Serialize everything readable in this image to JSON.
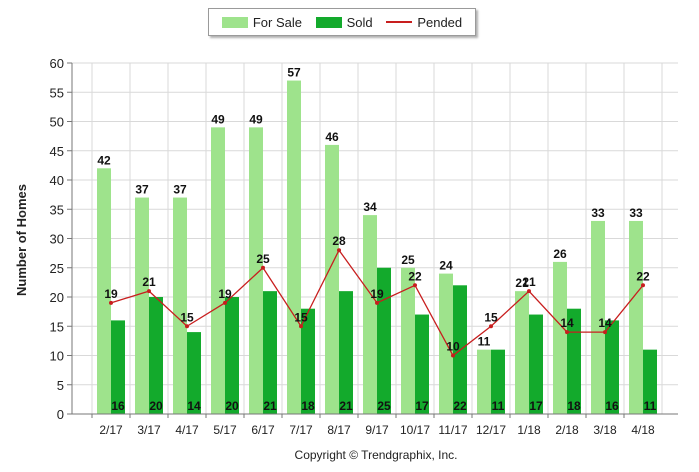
{
  "chart_data": {
    "type": "bar",
    "categories": [
      "2/17",
      "3/17",
      "4/17",
      "5/17",
      "6/17",
      "7/17",
      "8/17",
      "9/17",
      "10/17",
      "11/17",
      "12/17",
      "1/18",
      "2/18",
      "3/18",
      "4/18"
    ],
    "series": [
      {
        "name": "For Sale",
        "type": "bar",
        "color": "#9ee38c",
        "values": [
          42,
          37,
          37,
          49,
          49,
          57,
          46,
          34,
          25,
          24,
          11,
          21,
          26,
          33,
          33
        ]
      },
      {
        "name": "Sold",
        "type": "bar",
        "color": "#13aa2c",
        "values": [
          16,
          20,
          14,
          20,
          21,
          18,
          21,
          25,
          17,
          22,
          11,
          17,
          18,
          16,
          11
        ]
      },
      {
        "name": "Pended",
        "type": "line",
        "color": "#c81e1e",
        "values": [
          19,
          21,
          15,
          19,
          25,
          15,
          28,
          19,
          22,
          10,
          15,
          21,
          14,
          14,
          22
        ]
      }
    ],
    "ylabel": "Number of Homes",
    "ylim": [
      0,
      60
    ],
    "yticks": [
      0,
      5,
      10,
      15,
      20,
      25,
      30,
      35,
      40,
      45,
      50,
      55,
      60
    ],
    "grid": true,
    "legend_position": "top"
  },
  "legend": [
    {
      "label": "For Sale",
      "kind": "bar",
      "color": "#9ee38c"
    },
    {
      "label": "Sold",
      "kind": "bar",
      "color": "#13aa2c"
    },
    {
      "label": "Pended",
      "kind": "line",
      "color": "#c81e1e"
    }
  ],
  "copyright": "Copyright © Trendgraphix, Inc."
}
